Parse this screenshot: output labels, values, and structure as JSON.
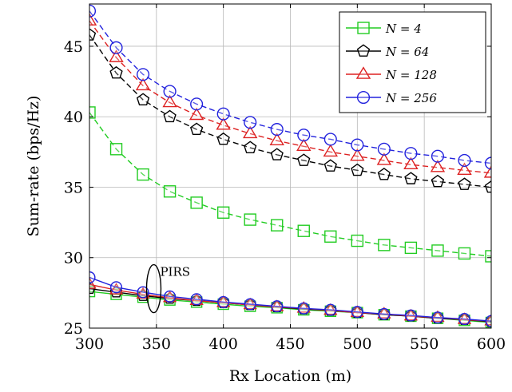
{
  "chart_data": {
    "type": "line",
    "xlabel": "Rx Location (m)",
    "ylabel": "Sum-rate (bps/Hz)",
    "xlim": [
      300,
      600
    ],
    "ylim": [
      25,
      48
    ],
    "xticks": [
      300,
      350,
      400,
      450,
      500,
      550,
      600
    ],
    "yticks": [
      25,
      30,
      35,
      40,
      45
    ],
    "grid": true,
    "legend_position": "top-right",
    "x": [
      300,
      320,
      340,
      360,
      380,
      400,
      420,
      440,
      460,
      480,
      500,
      520,
      540,
      560,
      580,
      600
    ],
    "series": [
      {
        "name": "N = 4",
        "color": "#22cc22",
        "marker": "square",
        "dash": true,
        "values": [
          40.3,
          37.7,
          35.9,
          34.7,
          33.9,
          33.2,
          32.7,
          32.3,
          31.9,
          31.5,
          31.2,
          30.9,
          30.7,
          30.5,
          30.3,
          30.1
        ]
      },
      {
        "name": "N = 64",
        "color": "#000000",
        "marker": "pentagon",
        "dash": true,
        "values": [
          45.8,
          43.1,
          41.2,
          40.0,
          39.1,
          38.4,
          37.8,
          37.3,
          36.9,
          36.5,
          36.2,
          35.9,
          35.6,
          35.4,
          35.2,
          35.0
        ]
      },
      {
        "name": "N = 128",
        "color": "#dd2222",
        "marker": "triangle",
        "dash": true,
        "values": [
          46.8,
          44.2,
          42.2,
          41.0,
          40.1,
          39.4,
          38.8,
          38.3,
          37.9,
          37.5,
          37.2,
          36.9,
          36.6,
          36.4,
          36.2,
          36.0
        ]
      },
      {
        "name": "N = 256",
        "color": "#2222dd",
        "marker": "circle",
        "dash": true,
        "values": [
          47.5,
          44.9,
          43.0,
          41.8,
          40.9,
          40.2,
          39.6,
          39.1,
          38.7,
          38.4,
          38.0,
          37.7,
          37.4,
          37.2,
          36.9,
          36.7
        ]
      },
      {
        "color": "#22cc22",
        "marker": "square",
        "dash": false,
        "values": [
          27.6,
          27.4,
          27.2,
          27.0,
          26.85,
          26.7,
          26.55,
          26.45,
          26.3,
          26.2,
          26.1,
          25.95,
          25.85,
          25.7,
          25.55,
          25.4
        ]
      },
      {
        "color": "#000000",
        "marker": "pentagon",
        "dash": false,
        "values": [
          27.8,
          27.55,
          27.3,
          27.1,
          26.95,
          26.8,
          26.65,
          26.5,
          26.35,
          26.25,
          26.1,
          25.95,
          25.85,
          25.7,
          25.6,
          25.45
        ]
      },
      {
        "color": "#dd2222",
        "marker": "triangle",
        "dash": false,
        "values": [
          28.1,
          27.7,
          27.4,
          27.15,
          26.95,
          26.8,
          26.65,
          26.5,
          26.4,
          26.25,
          26.1,
          26.0,
          25.85,
          25.75,
          25.6,
          25.5
        ]
      },
      {
        "color": "#2222dd",
        "marker": "circle",
        "dash": false,
        "values": [
          28.6,
          27.9,
          27.55,
          27.25,
          27.05,
          26.85,
          26.7,
          26.55,
          26.4,
          26.3,
          26.15,
          26.0,
          25.9,
          25.75,
          25.65,
          25.5
        ]
      }
    ],
    "annotations": [
      {
        "text": "PIRS",
        "x": 348,
        "y": 27.8
      }
    ]
  }
}
